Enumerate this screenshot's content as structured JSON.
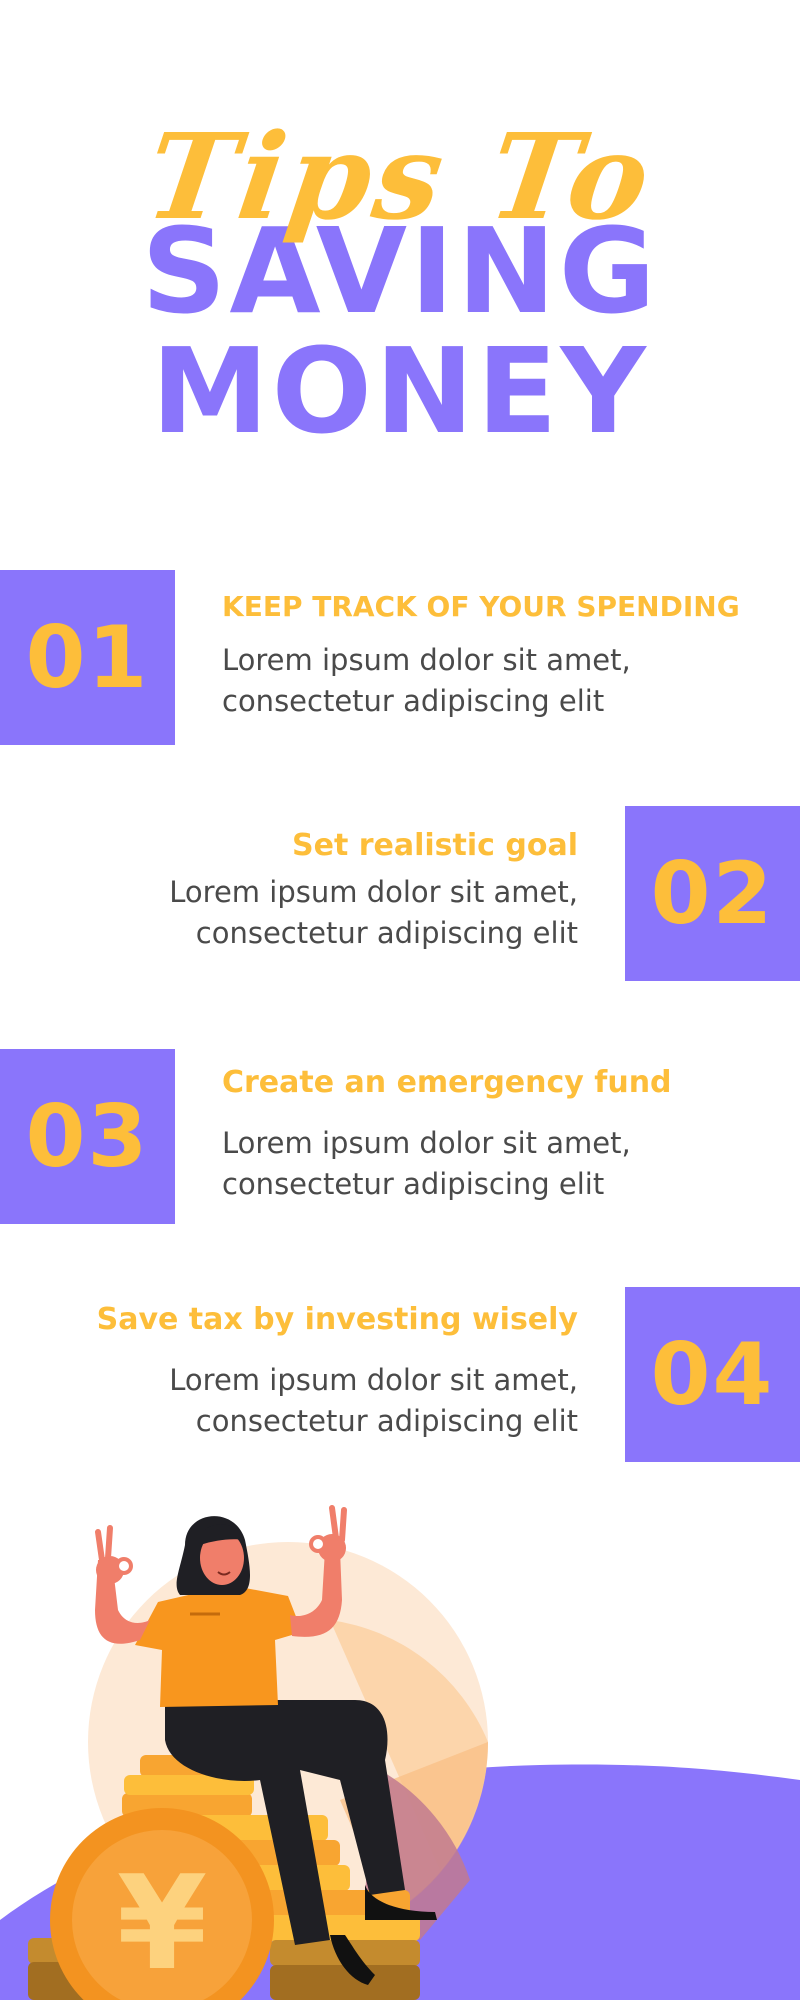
{
  "title": {
    "script": "Tips To",
    "line1": "SAVING",
    "line2": "MONEY"
  },
  "tips": [
    {
      "number": "01",
      "title": "KEEP TRACK OF YOUR SPENDING",
      "desc_line1": "Lorem ipsum dolor sit amet,",
      "desc_line2": "consectetur adipiscing elit"
    },
    {
      "number": "02",
      "title": "Set realistic goal",
      "desc_line1": "Lorem ipsum dolor sit amet,",
      "desc_line2": "consectetur adipiscing elit"
    },
    {
      "number": "03",
      "title": "Create an emergency fund",
      "desc_line1": "Lorem ipsum dolor sit amet,",
      "desc_line2": "consectetur adipiscing elit"
    },
    {
      "number": "04",
      "title": "Save tax by investing wisely",
      "desc_line1": "Lorem ipsum dolor sit amet,",
      "desc_line2": "consectetur adipiscing elit"
    }
  ],
  "illustration": {
    "subject": "woman-sitting-on-coins",
    "coin_symbol": "¥"
  },
  "colors": {
    "purple": "#8A75FB",
    "yellow": "#FDBE3A",
    "text": "#4a4a4a"
  }
}
